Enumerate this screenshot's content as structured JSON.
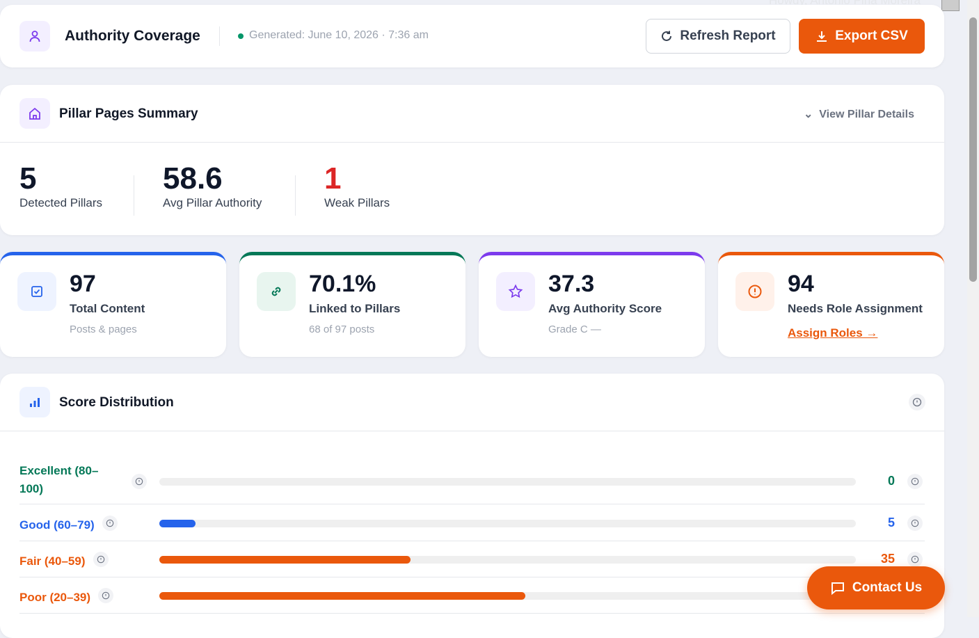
{
  "header": {
    "title": "Authority Coverage",
    "generated": "Generated: June 10, 2026 · 7:36 am",
    "refresh": "Refresh Report",
    "export": "Export CSV",
    "user": "Howdy, Antonio Pina Moreira"
  },
  "pillar_summary": {
    "title": "Pillar Pages Summary",
    "link": "View Pillar Details",
    "stats": [
      {
        "value": 5,
        "label": "Detected Pillars"
      },
      {
        "value": 58.6,
        "label": "Avg Pillar Authority"
      },
      {
        "value": 1,
        "label": "Weak Pillars"
      }
    ]
  },
  "metrics": [
    {
      "value": 97,
      "label": "Total Content",
      "sub": "Posts & pages",
      "color": "#2563eb"
    },
    {
      "value": "70.1%",
      "label": "Linked to Pillars",
      "sub": "68 of 97 posts",
      "color": "#047857"
    },
    {
      "value": 37.3,
      "label": "Avg Authority Score",
      "sub": "Grade C —",
      "color": "#7c3aed"
    },
    {
      "value": 94,
      "label": "Needs Role Assignment",
      "link": "Assign Roles →",
      "color": "#ea580c"
    }
  ],
  "score_distribution": {
    "title": "Score Distribution",
    "rows": [
      {
        "label": "Excellent (80–100)",
        "value": 0,
        "color": "#047857"
      },
      {
        "label": "Good (60–79)",
        "value": 5,
        "color": "#2563eb"
      },
      {
        "label": "Fair (40–59)",
        "value": 35,
        "color": "#ea580c"
      },
      {
        "label": "Poor (20–39)",
        "value": 51,
        "color": "#ea580c"
      }
    ]
  },
  "contact": "Contact Us"
}
